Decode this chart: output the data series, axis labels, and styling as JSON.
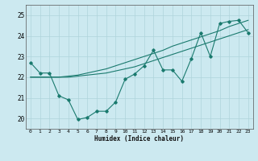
{
  "title": "",
  "xlabel": "Humidex (Indice chaleur)",
  "ylabel": "",
  "bg_color": "#cce9f0",
  "line_color": "#1a7a6e",
  "grid_color": "#afd4db",
  "xlim": [
    -0.5,
    23.5
  ],
  "ylim": [
    19.5,
    25.5
  ],
  "xticks": [
    0,
    1,
    2,
    3,
    4,
    5,
    6,
    7,
    8,
    9,
    10,
    11,
    12,
    13,
    14,
    15,
    16,
    17,
    18,
    19,
    20,
    21,
    22,
    23
  ],
  "yticks": [
    20,
    21,
    22,
    23,
    24,
    25
  ],
  "line1_x": [
    0,
    1,
    2,
    3,
    4,
    5,
    6,
    7,
    8,
    9,
    10,
    11,
    12,
    13,
    14,
    15,
    16,
    17,
    18,
    19,
    20,
    21,
    22,
    23
  ],
  "line1_y": [
    22.7,
    22.2,
    22.2,
    21.1,
    20.9,
    19.95,
    20.05,
    20.35,
    20.35,
    20.8,
    21.9,
    22.15,
    22.55,
    23.3,
    22.35,
    22.35,
    21.8,
    22.9,
    24.15,
    23.0,
    24.6,
    24.7,
    24.75,
    24.15
  ],
  "line2_x": [
    0,
    1,
    2,
    3,
    4,
    5,
    6,
    7,
    8,
    9,
    10,
    11,
    12,
    13,
    14,
    15,
    16,
    17,
    18,
    19,
    20,
    21,
    22,
    23
  ],
  "line2_y": [
    22.0,
    22.0,
    22.0,
    22.0,
    22.0,
    22.05,
    22.1,
    22.15,
    22.2,
    22.3,
    22.4,
    22.5,
    22.65,
    22.8,
    22.95,
    23.1,
    23.25,
    23.4,
    23.55,
    23.7,
    23.85,
    24.0,
    24.15,
    24.3
  ],
  "line3_x": [
    0,
    1,
    2,
    3,
    4,
    5,
    6,
    7,
    8,
    9,
    10,
    11,
    12,
    13,
    14,
    15,
    16,
    17,
    18,
    19,
    20,
    21,
    22,
    23
  ],
  "line3_y": [
    22.0,
    22.0,
    22.0,
    22.0,
    22.05,
    22.1,
    22.2,
    22.3,
    22.4,
    22.55,
    22.7,
    22.85,
    23.0,
    23.15,
    23.3,
    23.5,
    23.65,
    23.8,
    23.95,
    24.1,
    24.25,
    24.45,
    24.6,
    24.75
  ]
}
